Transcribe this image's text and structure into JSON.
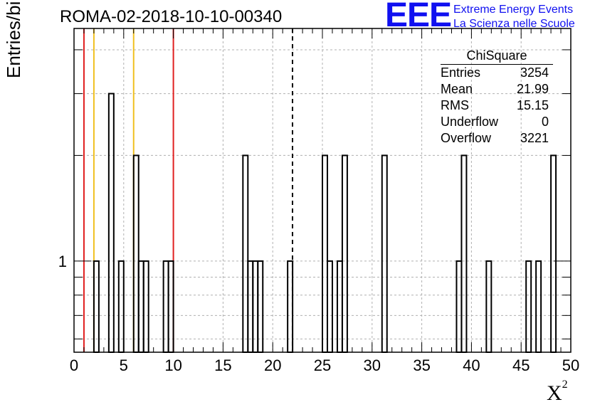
{
  "header": {
    "title": "ROMA-02-2018-10-10-00340",
    "logo_mark": "EEE",
    "logo_line1": "Extreme Energy Events",
    "logo_line2": "La Scienza nelle Scuole"
  },
  "stats": {
    "title": "ChiSquare",
    "rows": [
      {
        "key": "Entries",
        "value": "3254"
      },
      {
        "key": "Mean",
        "value": "21.99"
      },
      {
        "key": "RMS",
        "value": "15.15"
      },
      {
        "key": "Underflow",
        "value": "0"
      },
      {
        "key": "Overflow",
        "value": "3221"
      }
    ]
  },
  "colors": {
    "red_line": "#e02020",
    "yellow_line": "#f0c020",
    "logo": "#1010f0"
  },
  "chart_data": {
    "type": "bar",
    "title": "ROMA-02-2018-10-10-00340",
    "xlabel": "χ2",
    "ylabel": "Entries/bin",
    "xlim": [
      0,
      50
    ],
    "y_scale": "log",
    "ylim": [
      0.55,
      4.6
    ],
    "grid": true,
    "x_ticks": [
      "0",
      "5",
      "10",
      "15",
      "20",
      "25",
      "30",
      "35",
      "40",
      "45",
      "50"
    ],
    "y_ticks": [
      "1"
    ],
    "bin_width": 0.5,
    "bins": [
      {
        "x": 2.0,
        "count": 1
      },
      {
        "x": 3.5,
        "count": 3
      },
      {
        "x": 4.5,
        "count": 1
      },
      {
        "x": 6.0,
        "count": 2
      },
      {
        "x": 6.5,
        "count": 1
      },
      {
        "x": 7.0,
        "count": 1
      },
      {
        "x": 9.0,
        "count": 1
      },
      {
        "x": 9.5,
        "count": 1
      },
      {
        "x": 17.0,
        "count": 2
      },
      {
        "x": 17.5,
        "count": 1
      },
      {
        "x": 18.0,
        "count": 1
      },
      {
        "x": 18.5,
        "count": 1
      },
      {
        "x": 21.5,
        "count": 1
      },
      {
        "x": 25.0,
        "count": 2
      },
      {
        "x": 25.5,
        "count": 1
      },
      {
        "x": 26.5,
        "count": 1
      },
      {
        "x": 27.0,
        "count": 2
      },
      {
        "x": 31.0,
        "count": 2
      },
      {
        "x": 38.5,
        "count": 1
      },
      {
        "x": 39.0,
        "count": 2
      },
      {
        "x": 41.5,
        "count": 1
      },
      {
        "x": 45.5,
        "count": 1
      },
      {
        "x": 46.5,
        "count": 1
      },
      {
        "x": 48.0,
        "count": 2
      }
    ],
    "reference_lines": [
      {
        "x": 1,
        "color": "red"
      },
      {
        "x": 2,
        "color": "yellow"
      },
      {
        "x": 6,
        "color": "yellow"
      },
      {
        "x": 10,
        "color": "red"
      }
    ],
    "mean_line": {
      "x": 21.99,
      "style": "dashed"
    }
  }
}
